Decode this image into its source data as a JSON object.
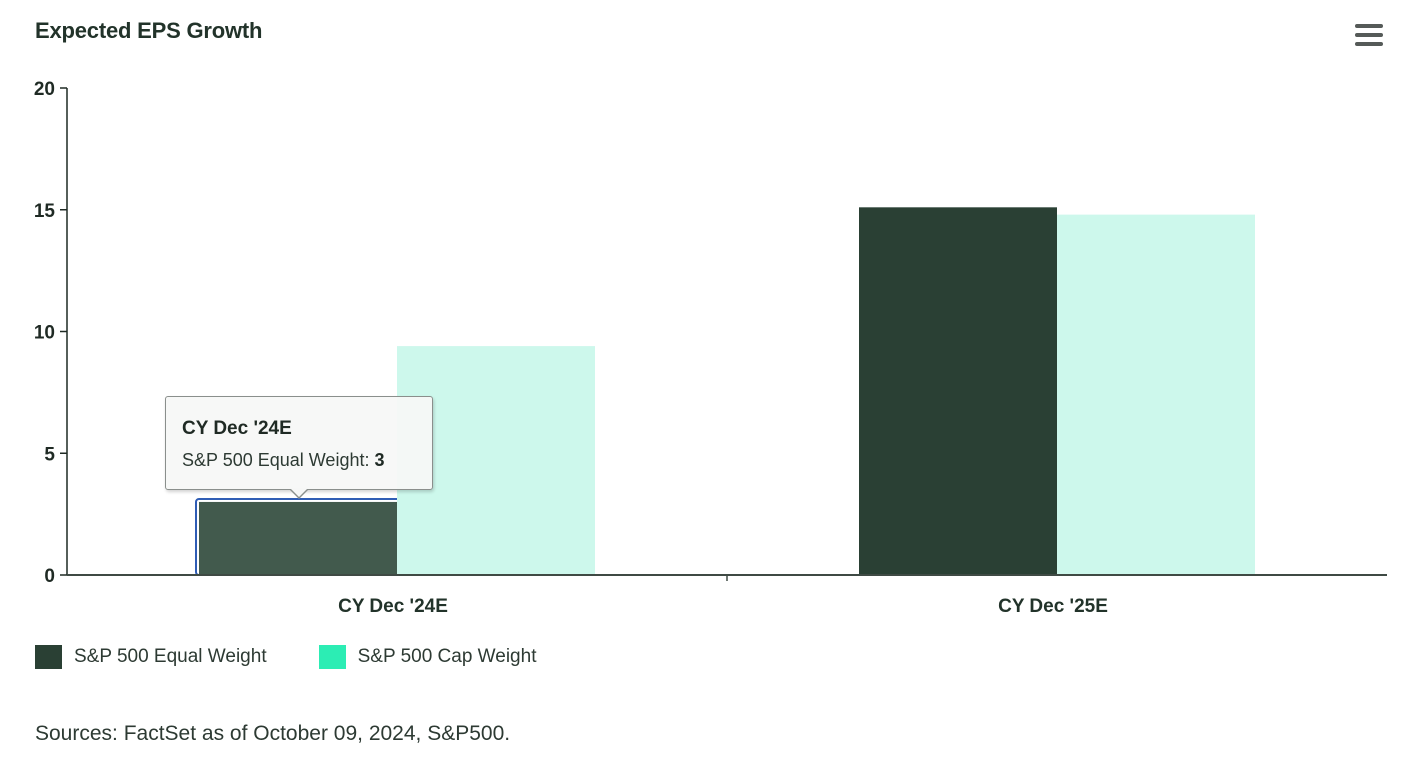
{
  "header": {
    "title": "Expected EPS Growth",
    "menu_icon": "hamburger-menu-icon"
  },
  "chart_data": {
    "type": "bar",
    "title": "Expected EPS Growth",
    "categories": [
      "CY Dec '24E",
      "CY Dec '25E"
    ],
    "series": [
      {
        "name": "S&P 500 Equal Weight",
        "values": [
          3,
          15.1
        ],
        "color": "#2a4034"
      },
      {
        "name": "S&P 500 Cap Weight",
        "values": [
          9.4,
          14.8
        ],
        "color": "#cdf8ec"
      }
    ],
    "ylim": [
      0,
      20
    ],
    "yticks": [
      "0",
      "5",
      "10",
      "15",
      "20"
    ],
    "xlabel": "",
    "ylabel": "",
    "grid": false,
    "legend": "bottom-left",
    "highlight": {
      "series": 0,
      "category": 0,
      "hover_color": "#425a4d",
      "outline_color": "#2f5db5"
    }
  },
  "tooltip": {
    "title": "CY Dec '24E",
    "series_label": "S&P 500 Equal Weight: ",
    "value": "3"
  },
  "legend": {
    "items": [
      {
        "label": "S&P 500 Equal Weight",
        "color": "#2a4034"
      },
      {
        "label": "S&P 500 Cap Weight",
        "color": "#2cedb4"
      }
    ]
  },
  "footer": {
    "sources": "Sources: FactSet as of October 09, 2024, S&P500."
  }
}
